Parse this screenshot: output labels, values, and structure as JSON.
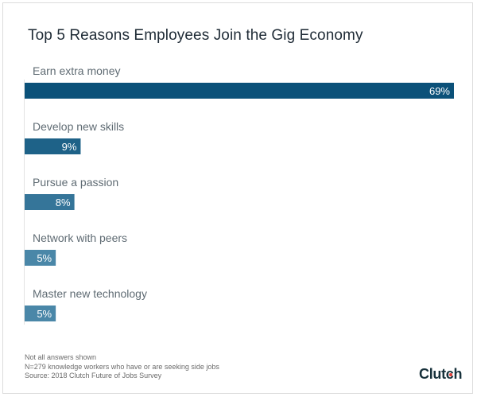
{
  "title": "Top 5 Reasons Employees Join the Gig Economy",
  "footnotes": [
    "Not all answers shown",
    "N=279 knowledge workers who have or are seeking side jobs",
    "Source: 2018 Clutch Future of Jobs Survey"
  ],
  "logo": {
    "text_main": "Clut",
    "text_c": "c",
    "text_end": "h",
    "dot_color": "#e2403a"
  },
  "chart_data": {
    "type": "bar",
    "orientation": "horizontal",
    "title": "Top 5 Reasons Employees Join the Gig Economy",
    "xlabel": "",
    "ylabel": "",
    "unit": "%",
    "categories": [
      "Earn extra money",
      "Develop new skills",
      "Pursue a passion",
      "Network with peers",
      "Master new technology"
    ],
    "values": [
      69,
      9,
      8,
      5,
      5
    ],
    "value_labels": [
      "69%",
      "9%",
      "8%",
      "5%",
      "5%"
    ],
    "colors": [
      "#0b5179",
      "#1e6288",
      "#357599",
      "#4a87a8",
      "#4a87a8"
    ],
    "xlim": [
      0,
      69
    ],
    "grid": false,
    "legend": "none"
  }
}
